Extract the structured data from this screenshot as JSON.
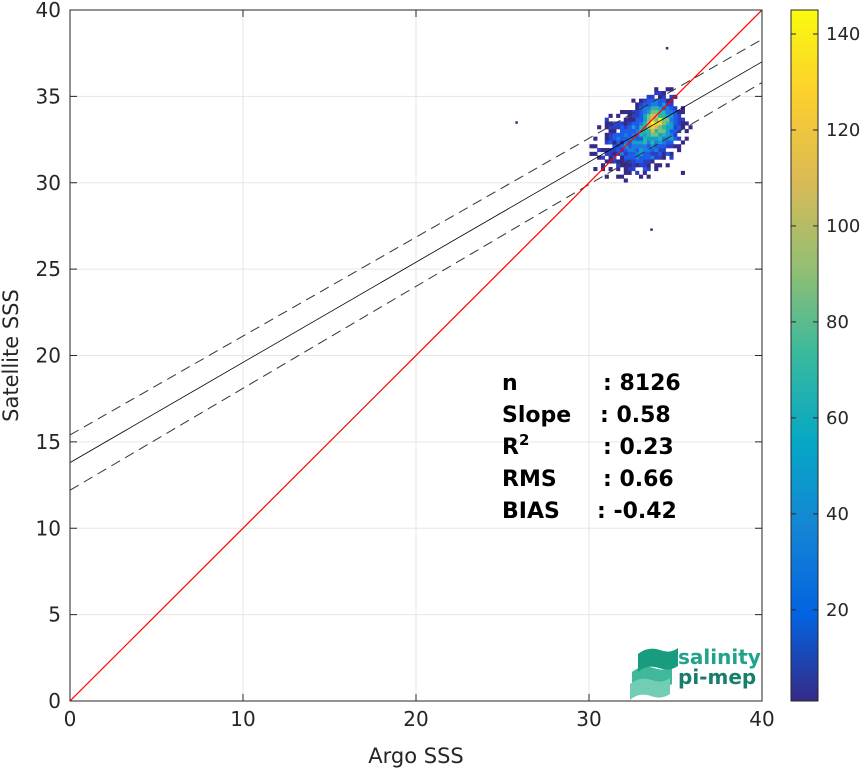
{
  "chart_data": {
    "type": "heatmap",
    "xlabel": "Argo SSS",
    "ylabel": "Satellite SSS",
    "xlim": [
      0,
      40
    ],
    "ylim": [
      0,
      40
    ],
    "xticks": [
      0,
      10,
      20,
      30,
      40
    ],
    "yticks": [
      0,
      5,
      10,
      15,
      20,
      25,
      30,
      35,
      40
    ],
    "grid": true,
    "colorbar": {
      "lim": [
        1,
        145
      ],
      "ticks": [
        20,
        40,
        60,
        80,
        100,
        120,
        140
      ],
      "colormap": "parula"
    },
    "identity_line": {
      "color": "#ff0000",
      "x": [
        0,
        40
      ],
      "y": [
        0,
        40
      ]
    },
    "fit_line": {
      "color": "#000000",
      "x": [
        0,
        40
      ],
      "y": [
        13.8,
        37.0
      ]
    },
    "fit_bounds_dashed": [
      {
        "x": [
          0,
          40
        ],
        "y": [
          15.4,
          38.3
        ]
      },
      {
        "x": [
          0,
          40
        ],
        "y": [
          12.2,
          35.8
        ]
      }
    ],
    "density_center": {
      "x": 33.9,
      "y": 33.5
    },
    "outliers": [
      {
        "x": 25.8,
        "y": 33.5
      },
      {
        "x": 33.6,
        "y": 27.3
      },
      {
        "x": 34.5,
        "y": 37.8
      }
    ],
    "stats": [
      {
        "label": "n",
        "sup": "",
        "value": ": 8126"
      },
      {
        "label": "Slope",
        "sup": "",
        "value": ": 0.58"
      },
      {
        "label": "R",
        "sup": "2",
        "value": ": 0.23"
      },
      {
        "label": "RMS",
        "sup": "",
        "value": ": 0.66"
      },
      {
        "label": "BIAS",
        "sup": "",
        "value": ": -0.42"
      }
    ]
  },
  "logo": {
    "line1": "salinity",
    "line2": "pi-mep",
    "color": "#1fa38a"
  }
}
